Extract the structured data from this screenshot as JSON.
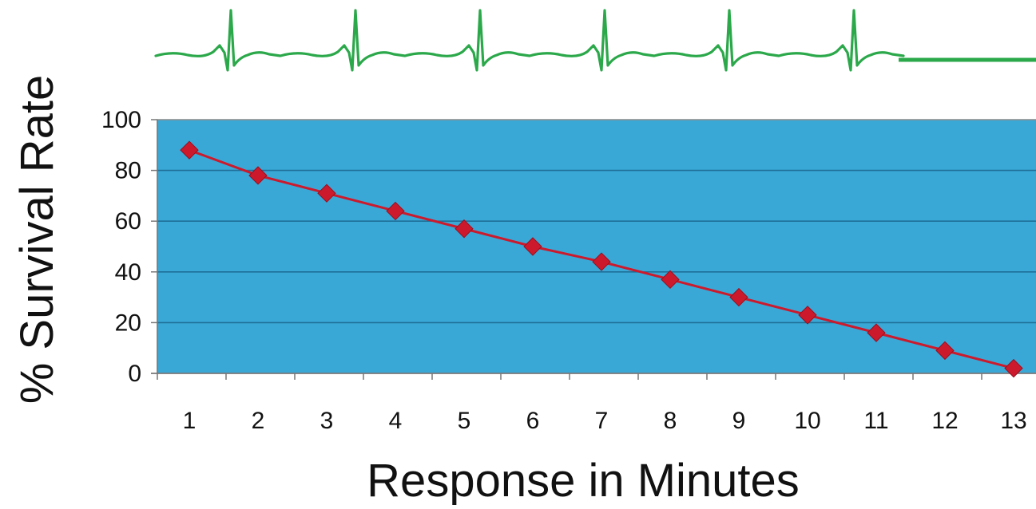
{
  "chart_data": {
    "type": "line",
    "title": "",
    "xlabel": "Response in Minutes",
    "ylabel": "% Survival Rate",
    "x": [
      1,
      2,
      3,
      4,
      5,
      6,
      7,
      8,
      9,
      10,
      11,
      12,
      13
    ],
    "series": [
      {
        "values": [
          88,
          78,
          71,
          64,
          57,
          50,
          44,
          37,
          30,
          23,
          16,
          9,
          2
        ]
      }
    ],
    "ylim": [
      0,
      100
    ],
    "yticks": [
      0,
      20,
      40,
      60,
      80,
      100
    ],
    "grid": true,
    "legend": "none",
    "colors": {
      "plot_background": "#3aa8d6",
      "gridline": "#1e6f98",
      "series": "#cc1a2c",
      "ecg_trace": "#2ba84a",
      "axis": "#777777",
      "text": "#111111"
    },
    "decoration": {
      "ecg_beats": 6,
      "ecg_ends_flatline": true
    }
  }
}
